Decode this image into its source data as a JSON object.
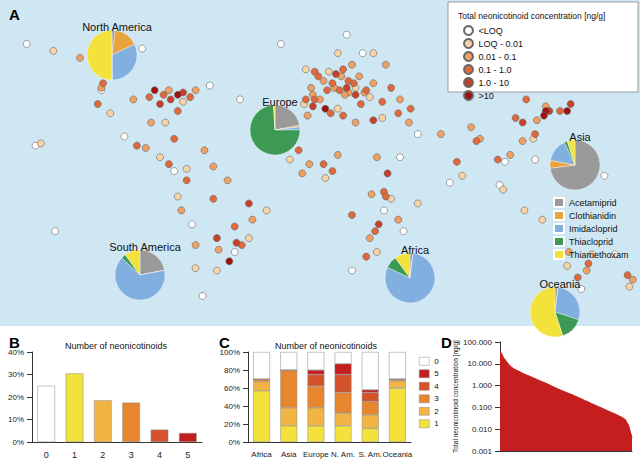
{
  "chart_data": [
    {
      "type": "scatter",
      "title": "A",
      "legend_title": "Total neonicotinoid concentration [ng/g]",
      "legend": "top right",
      "tick_labels": false,
      "grid": false,
      "xlim": [
        -180,
        180
      ],
      "ylim": [
        -58,
        83
      ],
      "series": [
        {
          "name": "<LOQ",
          "color": "#ffffff",
          "values": [
            [
              -165,
              64
            ],
            [
              -123,
              44
            ],
            [
              -100,
              62
            ],
            [
              -62,
              46
            ],
            [
              -110,
              24
            ],
            [
              -82,
              9
            ],
            [
              -72,
              -14
            ],
            [
              -48,
              -26
            ],
            [
              -66,
              -45
            ],
            [
              -22,
              64
            ],
            [
              -45,
              40
            ],
            [
              15,
              68
            ],
            [
              24,
              60
            ],
            [
              18,
              -34
            ],
            [
              36,
              -8
            ],
            [
              47,
              -17
            ],
            [
              45,
              15
            ],
            [
              73,
              4
            ],
            [
              101,
              3
            ],
            [
              104,
              13
            ],
            [
              121,
              14
            ],
            [
              160,
              7
            ],
            [
              166,
              -27
            ],
            [
              -149,
              -17
            ],
            [
              147,
              -42
            ],
            [
              55,
              25
            ],
            [
              -160,
              20
            ]
          ]
        },
        {
          "name": "LOQ - 0.01",
          "color": "#f8d3a8",
          "values": [
            [
              -150,
              61
            ],
            [
              -70,
              -33
            ],
            [
              -58,
              -34
            ],
            [
              -40,
              -20
            ],
            [
              10,
              60
            ],
            [
              5,
              52
            ],
            [
              -8,
              53
            ],
            [
              20,
              45
            ],
            [
              30,
              60
            ],
            [
              28,
              41
            ],
            [
              35,
              32
            ],
            [
              10,
              36
            ],
            [
              -9,
              38
            ],
            [
              3,
              6
            ],
            [
              -17,
              14
            ],
            [
              32,
              -26
            ],
            [
              40,
              -3
            ],
            [
              55,
              -5
            ],
            [
              80,
              7
            ],
            [
              120,
              23
            ],
            [
              103,
              1
            ],
            [
              115,
              -8
            ],
            [
              125,
              -12
            ],
            [
              153,
              -27
            ],
            [
              174,
              -41
            ],
            [
              139,
              -32
            ],
            [
              -80,
              -2
            ],
            [
              -75,
              10
            ],
            [
              -90,
              15
            ],
            [
              -118,
              34
            ],
            [
              -77,
              39
            ],
            [
              -87,
              30
            ],
            [
              -157,
              21
            ],
            [
              -30,
              -8
            ]
          ]
        },
        {
          "name": "0.01 - 0.1",
          "color": "#f0a060",
          "values": [
            [
              -135,
              58
            ],
            [
              -123,
              45
            ],
            [
              -105,
              40
            ],
            [
              -95,
              30
            ],
            [
              -70,
              44
            ],
            [
              -85,
              44
            ],
            [
              -98,
              19
            ],
            [
              -65,
              18
            ],
            [
              -60,
              11
            ],
            [
              -78,
              -8
            ],
            [
              -52,
              5
            ],
            [
              -38,
              -12
            ],
            [
              -57,
              -25
            ],
            [
              -70,
              -23
            ],
            [
              -5,
              45
            ],
            [
              2,
              48
            ],
            [
              12,
              50
            ],
            [
              18,
              55
            ],
            [
              22,
              50
            ],
            [
              25,
              43
            ],
            [
              16,
              43
            ],
            [
              8,
              45
            ],
            [
              -4,
              42
            ],
            [
              14,
              42
            ],
            [
              37,
              55
            ],
            [
              45,
              40
            ],
            [
              30,
              47
            ],
            [
              -7,
              33
            ],
            [
              10,
              16
            ],
            [
              32,
              15
            ],
            [
              29,
              -1
            ],
            [
              28,
              -20
            ],
            [
              44,
              -12
            ],
            [
              50,
              30
            ],
            [
              68,
              25
            ],
            [
              85,
              28
            ],
            [
              90,
              23
            ],
            [
              107,
              16
            ],
            [
              114,
              22
            ],
            [
              122,
              31
            ],
            [
              127,
              37
            ],
            [
              140,
              -26
            ],
            [
              150,
              -34
            ],
            [
              176,
              -38
            ],
            [
              -6,
              12
            ],
            [
              -10,
              8
            ],
            [
              0,
              40
            ],
            [
              20,
              30
            ]
          ]
        },
        {
          "name": "0.1 - 1.0",
          "color": "#e0683a",
          "values": [
            [
              -125,
              38
            ],
            [
              -96,
              41
            ],
            [
              -88,
              42
            ],
            [
              -80,
              35
            ],
            [
              -73,
              41
            ],
            [
              -122,
              47
            ],
            [
              -103,
              20
            ],
            [
              -85,
              12
            ],
            [
              -75,
              5
            ],
            [
              -48,
              -15
            ],
            [
              -44,
              -23
            ],
            [
              -60,
              -3
            ],
            [
              -3,
              52
            ],
            [
              -1,
              50
            ],
            [
              4,
              44
            ],
            [
              7,
              47
            ],
            [
              11,
              44
            ],
            [
              13,
              53
            ],
            [
              16,
              48
            ],
            [
              19,
              47
            ],
            [
              23,
              38
            ],
            [
              26,
              44
            ],
            [
              -8,
              40
            ],
            [
              -3,
              40
            ],
            [
              35,
              39
            ],
            [
              40,
              45
            ],
            [
              44,
              34
            ],
            [
              13,
              33
            ],
            [
              6,
              34
            ],
            [
              36,
              0
            ],
            [
              37,
              -2
            ],
            [
              31,
              -17
            ],
            [
              18,
              -10
            ],
            [
              26,
              -28
            ],
            [
              7,
              9
            ],
            [
              2,
              12
            ],
            [
              -12,
              18
            ],
            [
              51,
              36
            ],
            [
              77,
              13
            ],
            [
              88,
              22
            ],
            [
              100,
              14
            ],
            [
              110,
              32
            ],
            [
              116,
              40
            ],
            [
              121,
              25
            ],
            [
              135,
              35
            ],
            [
              145,
              -37
            ],
            [
              151,
              -31
            ],
            [
              173,
              -36
            ],
            [
              -82,
              23
            ]
          ]
        },
        {
          "name": "1.0 - 10",
          "color": "#c8402a",
          "values": [
            [
              -84,
              40
            ],
            [
              -90,
              38
            ],
            [
              -77,
              43
            ],
            [
              -58,
              -20
            ],
            [
              -47,
              -22
            ],
            [
              9,
              51
            ],
            [
              15,
              45
            ],
            [
              20,
              42
            ],
            [
              -4,
              37
            ],
            [
              30,
              31
            ],
            [
              38,
              8
            ],
            [
              33,
              -14
            ],
            [
              114,
              30
            ],
            [
              129,
              35
            ],
            [
              141,
              38
            ],
            [
              -40,
              -5
            ]
          ]
        },
        {
          "name": ">10",
          "color": "#a01010",
          "values": [
            [
              -93,
              44
            ],
            [
              -80,
              42
            ],
            [
              127,
              35
            ],
            [
              139,
              35
            ],
            [
              126,
              33
            ],
            [
              -51,
              -30
            ],
            [
              3,
              36
            ]
          ]
        }
      ]
    },
    {
      "type": "pie",
      "legend": "right",
      "categories": [
        "Acetamiprid",
        "Clothianidin",
        "Imidacloprid",
        "Thiacloprid",
        "Thiamethoxam"
      ],
      "colors": [
        "#9a9a9a",
        "#e9a43d",
        "#80afe0",
        "#3c9a55",
        "#f4e23c"
      ],
      "series": [
        {
          "name": "North America",
          "values": [
            2,
            16,
            32,
            0,
            50
          ]
        },
        {
          "name": "Europe",
          "values": [
            22,
            1,
            2,
            74,
            1
          ]
        },
        {
          "name": "Asia",
          "values": [
            73,
            5,
            15,
            2,
            5
          ]
        },
        {
          "name": "South America",
          "values": [
            22,
            0,
            65,
            3,
            10
          ]
        },
        {
          "name": "Africa",
          "values": [
            2,
            0,
            80,
            8,
            10
          ]
        },
        {
          "name": "Oceania",
          "values": [
            2,
            0,
            28,
            15,
            55
          ]
        }
      ]
    },
    {
      "type": "bar",
      "title": "B",
      "subtitle": "Number of neonicotinoids",
      "categories": [
        "0",
        "1",
        "2",
        "3",
        "4",
        "5"
      ],
      "values": [
        25,
        30.5,
        18.5,
        17.5,
        5.5,
        4
      ],
      "colors": [
        "#ffffff",
        "#f4e23c",
        "#f2b443",
        "#e8852f",
        "#d5532b",
        "#c41e1e"
      ],
      "ylim": [
        0,
        40
      ],
      "yticks": [
        {
          "value": 0,
          "label": "0%"
        },
        {
          "value": 10,
          "label": "10%"
        },
        {
          "value": 20,
          "label": "20%"
        },
        {
          "value": 30,
          "label": "30%"
        },
        {
          "value": 40,
          "label": "40%"
        }
      ],
      "grid": false
    },
    {
      "type": "bar",
      "title": "C",
      "subtitle": "Number of neonicotinoids",
      "stacked": true,
      "legend": "right",
      "categories": [
        "Africa",
        "Asia",
        "Europe",
        "N. Am.",
        "S. Am.",
        "Oceania"
      ],
      "series": [
        {
          "name": "1",
          "color": "#f4e23c",
          "values": [
            57,
            18,
            18,
            18,
            15,
            60
          ]
        },
        {
          "name": "2",
          "color": "#f2b443",
          "values": [
            10,
            20,
            20,
            14,
            15,
            8
          ]
        },
        {
          "name": "3",
          "color": "#e8852f",
          "values": [
            3,
            42,
            24,
            23,
            15,
            2
          ]
        },
        {
          "name": "4",
          "color": "#d5532b",
          "values": [
            0,
            0,
            13,
            20,
            10,
            0
          ]
        },
        {
          "name": "5",
          "color": "#c41e1e",
          "values": [
            0,
            0,
            5,
            12,
            3,
            0
          ]
        },
        {
          "name": "0",
          "color": "#ffffff",
          "values": [
            30,
            20,
            20,
            13,
            42,
            30
          ]
        }
      ],
      "ylim": [
        0,
        100
      ],
      "yticks": [
        {
          "value": 0,
          "label": "0%"
        },
        {
          "value": 20,
          "label": "20%"
        },
        {
          "value": 40,
          "label": "40%"
        },
        {
          "value": 60,
          "label": "60%"
        },
        {
          "value": 80,
          "label": "80%"
        },
        {
          "value": 100,
          "label": "100%"
        }
      ],
      "grid": false
    },
    {
      "type": "area",
      "title": "D",
      "y_label": "Total neonicotinoid concentration [ng/g]",
      "log": "y",
      "tick_labels": "y",
      "grid": false,
      "color": "#c41e1e",
      "x": [
        1,
        2,
        3,
        4,
        5,
        6,
        7,
        8,
        9,
        10,
        11,
        12,
        13,
        14,
        15,
        16,
        17,
        18,
        19,
        20,
        21,
        22,
        23,
        24,
        25,
        26,
        27,
        28,
        29,
        30,
        31,
        32,
        33,
        34,
        35,
        36,
        37,
        38,
        39,
        40
      ],
      "values": [
        40,
        20,
        12,
        8,
        6,
        5,
        4.2,
        3.5,
        3,
        2.6,
        2.2,
        1.9,
        1.6,
        1.4,
        1.2,
        1.0,
        0.85,
        0.72,
        0.62,
        0.53,
        0.46,
        0.4,
        0.34,
        0.29,
        0.25,
        0.21,
        0.18,
        0.15,
        0.13,
        0.11,
        0.095,
        0.08,
        0.068,
        0.058,
        0.05,
        0.042,
        0.035,
        0.028,
        0.015,
        0.004
      ],
      "xlim": [
        1,
        40
      ],
      "ylim": [
        0.001,
        100
      ],
      "yticks": [
        {
          "value": 0.001,
          "label": "0.001"
        },
        {
          "value": 0.01,
          "label": "0.010"
        },
        {
          "value": 0.1,
          "label": "0.100"
        },
        {
          "value": 1,
          "label": "1.000"
        },
        {
          "value": 10,
          "label": "10.000"
        },
        {
          "value": 100,
          "label": "100.000"
        }
      ]
    }
  ]
}
